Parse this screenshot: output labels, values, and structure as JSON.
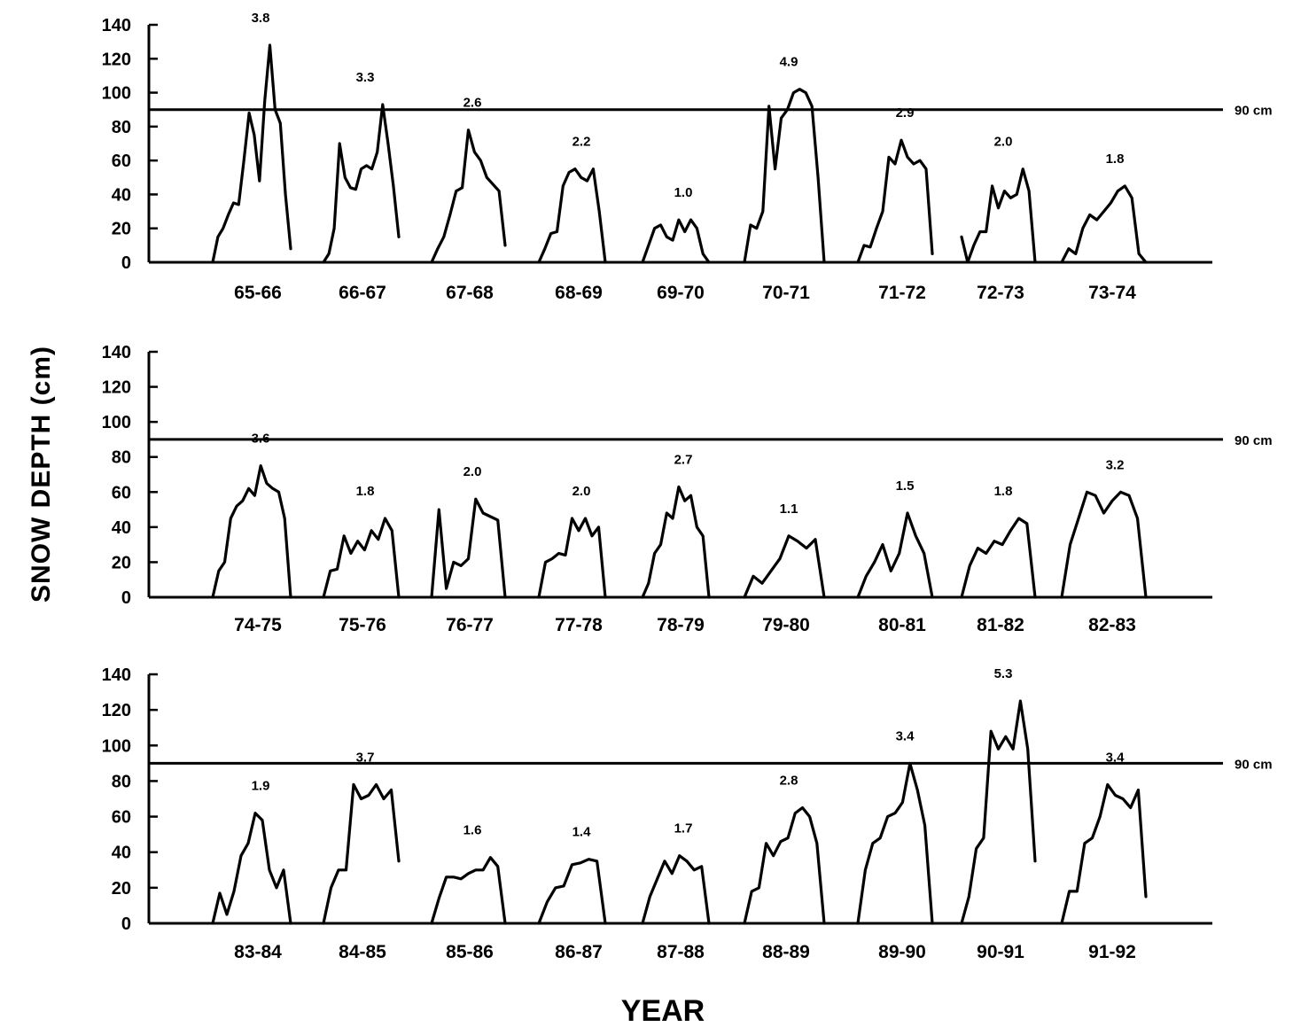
{
  "chart_data": {
    "type": "line",
    "ylabel": "SNOW DEPTH (cm)",
    "xlabel": "YEAR",
    "ylim": [
      0,
      140
    ],
    "yticks": [
      "0",
      "20",
      "40",
      "60",
      "80",
      "100",
      "120",
      "140"
    ],
    "threshold": {
      "value": 90,
      "label": "90 cm"
    },
    "panels": [
      {
        "seasons": [
          {
            "label": "65-66",
            "value_label": "3.8",
            "depth": [
              0,
              15,
              20,
              28,
              35,
              34,
              60,
              88,
              75,
              48,
              95,
              128,
              90,
              82,
              40,
              8
            ]
          },
          {
            "label": "66-67",
            "value_label": "3.3",
            "depth": [
              0,
              5,
              20,
              70,
              50,
              44,
              43,
              55,
              57,
              55,
              65,
              93,
              70,
              45,
              15
            ]
          },
          {
            "label": "67-68",
            "value_label": "2.6",
            "depth": [
              0,
              8,
              15,
              28,
              42,
              44,
              78,
              65,
              60,
              50,
              46,
              42,
              10
            ]
          },
          {
            "label": "68-69",
            "value_label": "2.2",
            "depth": [
              0,
              8,
              17,
              18,
              45,
              53,
              55,
              50,
              48,
              55,
              30,
              0
            ]
          },
          {
            "label": "69-70",
            "value_label": "1.0",
            "depth": [
              0,
              10,
              20,
              22,
              15,
              13,
              25,
              18,
              25,
              20,
              5,
              0
            ]
          },
          {
            "label": "70-71",
            "value_label": "4.9",
            "depth": [
              0,
              22,
              20,
              30,
              92,
              55,
              85,
              90,
              100,
              102,
              100,
              92,
              50,
              0
            ]
          },
          {
            "label": "71-72",
            "value_label": "2.9",
            "depth": [
              0,
              10,
              9,
              20,
              30,
              62,
              58,
              72,
              62,
              58,
              60,
              55,
              5
            ]
          },
          {
            "label": "72-73",
            "value_label": "2.0",
            "depth": [
              15,
              0,
              10,
              18,
              18,
              45,
              32,
              42,
              38,
              40,
              55,
              42,
              0
            ]
          },
          {
            "label": "73-74",
            "value_label": "1.8",
            "depth": [
              0,
              8,
              5,
              20,
              28,
              25,
              30,
              35,
              42,
              45,
              38,
              5,
              0
            ]
          }
        ]
      },
      {
        "seasons": [
          {
            "label": "74-75",
            "value_label": "3.6",
            "depth": [
              0,
              15,
              20,
              45,
              52,
              55,
              62,
              58,
              75,
              65,
              62,
              60,
              45,
              0
            ]
          },
          {
            "label": "75-76",
            "value_label": "1.8",
            "depth": [
              0,
              15,
              16,
              35,
              25,
              32,
              27,
              38,
              33,
              45,
              38,
              0
            ]
          },
          {
            "label": "76-77",
            "value_label": "2.0",
            "depth": [
              0,
              50,
              5,
              20,
              18,
              22,
              56,
              48,
              46,
              44,
              0
            ]
          },
          {
            "label": "77-78",
            "value_label": "2.0",
            "depth": [
              0,
              20,
              22,
              25,
              24,
              45,
              38,
              45,
              35,
              40,
              0
            ]
          },
          {
            "label": "78-79",
            "value_label": "2.7",
            "depth": [
              0,
              8,
              25,
              30,
              48,
              45,
              63,
              55,
              58,
              40,
              35,
              0
            ]
          },
          {
            "label": "79-80",
            "value_label": "1.1",
            "depth": [
              0,
              12,
              8,
              15,
              22,
              35,
              32,
              28,
              33,
              0
            ]
          },
          {
            "label": "80-81",
            "value_label": "1.5",
            "depth": [
              0,
              12,
              20,
              30,
              15,
              25,
              48,
              35,
              25,
              0
            ]
          },
          {
            "label": "81-82",
            "value_label": "1.8",
            "depth": [
              0,
              18,
              28,
              25,
              32,
              30,
              38,
              45,
              42,
              0
            ]
          },
          {
            "label": "82-83",
            "value_label": "3.2",
            "depth": [
              0,
              30,
              45,
              60,
              58,
              48,
              55,
              60,
              58,
              45,
              0
            ]
          }
        ]
      },
      {
        "seasons": [
          {
            "label": "83-84",
            "value_label": "1.9",
            "depth": [
              0,
              17,
              5,
              18,
              38,
              45,
              62,
              58,
              30,
              20,
              30,
              0
            ]
          },
          {
            "label": "84-85",
            "value_label": "3.7",
            "depth": [
              0,
              20,
              30,
              30,
              78,
              70,
              72,
              78,
              70,
              75,
              35
            ]
          },
          {
            "label": "85-86",
            "value_label": "1.6",
            "depth": [
              0,
              14,
              26,
              26,
              25,
              28,
              30,
              30,
              37,
              32,
              0
            ]
          },
          {
            "label": "86-87",
            "value_label": "1.4",
            "depth": [
              0,
              12,
              20,
              21,
              33,
              34,
              36,
              35,
              0
            ]
          },
          {
            "label": "87-88",
            "value_label": "1.7",
            "depth": [
              0,
              15,
              25,
              35,
              28,
              38,
              35,
              30,
              32,
              0
            ]
          },
          {
            "label": "88-89",
            "value_label": "2.8",
            "depth": [
              0,
              18,
              20,
              45,
              38,
              46,
              48,
              62,
              65,
              60,
              45,
              0
            ]
          },
          {
            "label": "89-90",
            "value_label": "3.4",
            "depth": [
              0,
              30,
              45,
              48,
              60,
              62,
              68,
              90,
              75,
              55,
              0
            ]
          },
          {
            "label": "90-91",
            "value_label": "5.3",
            "depth": [
              0,
              15,
              42,
              48,
              108,
              98,
              105,
              98,
              125,
              98,
              35
            ]
          },
          {
            "label": "91-92",
            "value_label": "3.4",
            "depth": [
              0,
              18,
              18,
              45,
              48,
              60,
              78,
              72,
              70,
              65,
              75,
              15
            ]
          }
        ]
      }
    ]
  }
}
